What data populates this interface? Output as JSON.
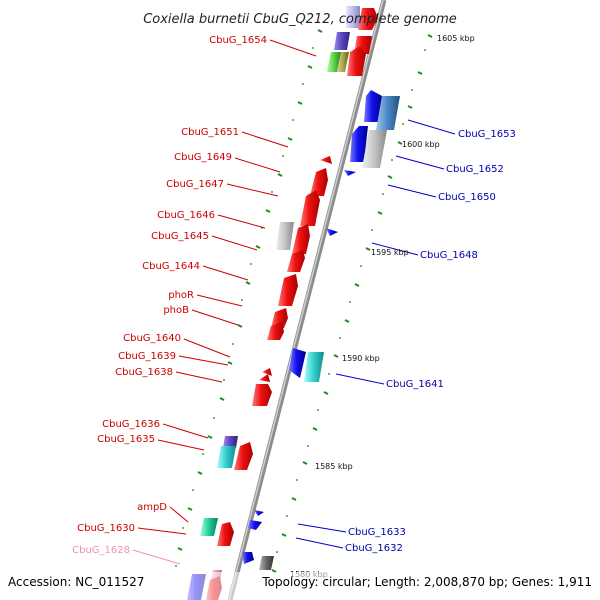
{
  "title": "Coxiella burnetii CbuG_Q212, complete genome",
  "footer": {
    "accession": "Accession: NC_011527",
    "summary": "Topology: circular; Length: 2,008,870 bp; Genes: 1,911"
  },
  "axis_ticks": [
    "1605 kbp",
    "1600 kbp",
    "1595 kbp",
    "1590 kbp",
    "1585 kbp",
    "1580 kbp"
  ],
  "genes_left": [
    "CbuG_1654",
    "CbuG_1651",
    "CbuG_1649",
    "CbuG_1647",
    "CbuG_1646",
    "CbuG_1645",
    "CbuG_1644",
    "phoR",
    "phoB",
    "CbuG_1640",
    "CbuG_1639",
    "CbuG_1638",
    "CbuG_1636",
    "CbuG_1635",
    "ampD",
    "CbuG_1630",
    "CbuG_1628"
  ],
  "genes_right": [
    "CbuG_1653",
    "CbuG_1652",
    "CbuG_1650",
    "CbuG_1648",
    "CbuG_1641",
    "CbuG_1633",
    "CbuG_1632"
  ],
  "colors": {
    "forward": "#e8161c",
    "reverse": "#1a1aee",
    "backbone": "#999999",
    "tick": "#1a8a1a"
  }
}
